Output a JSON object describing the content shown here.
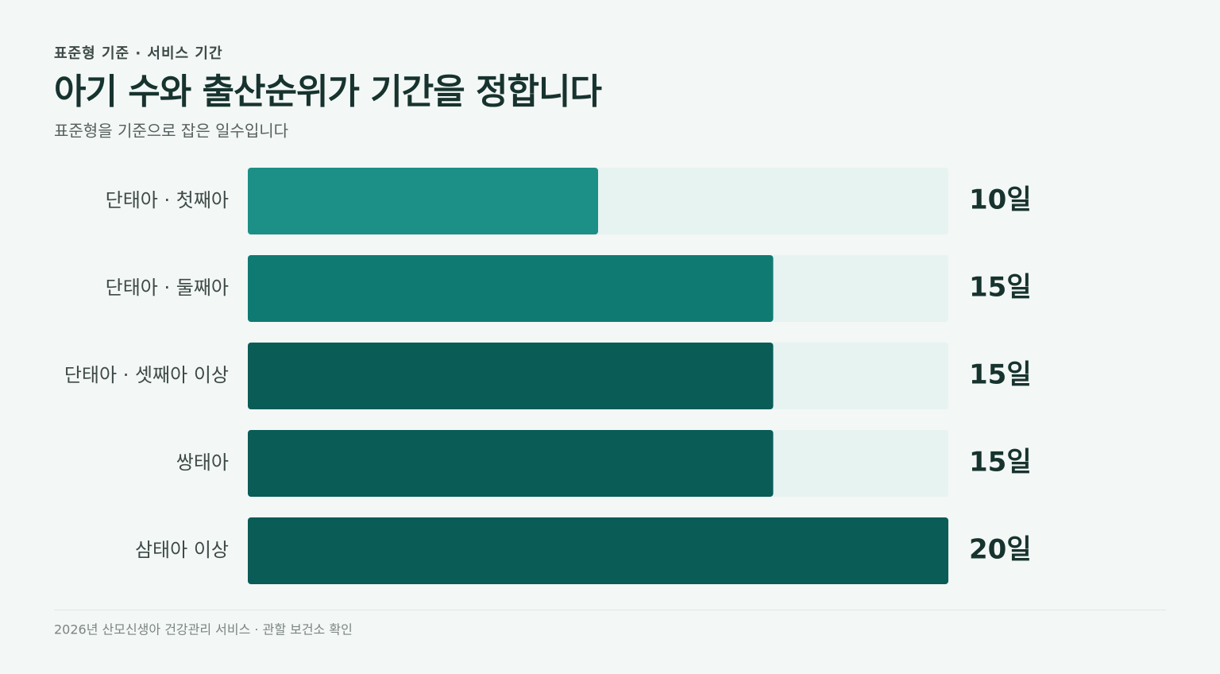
{
  "chart_data": {
    "type": "bar",
    "orientation": "horizontal",
    "eyebrow": "표준형 기준 · 서비스 기간",
    "title": "아기 수와 출산순위가 기간을 정합니다",
    "subtitle": "표준형을 기준으로 잡은 일수입니다",
    "categories": [
      "단태아 · 첫째아",
      "단태아 · 둘째아",
      "단태아 · 셋째아 이상",
      "쌍태아",
      "삼태아 이상"
    ],
    "values": [
      10,
      15,
      15,
      15,
      20
    ],
    "value_labels": [
      "10일",
      "15일",
      "15일",
      "15일",
      "20일"
    ],
    "colors": [
      "#1c8f86",
      "#0f7a72",
      "#0a5c57",
      "#0a5c57",
      "#0a5c57"
    ],
    "track_color": "#e6f3f1",
    "xlim": [
      0,
      20
    ],
    "footer": "2026년 산모신생아 건강관리 서비스 · 관할 보건소 확인"
  }
}
